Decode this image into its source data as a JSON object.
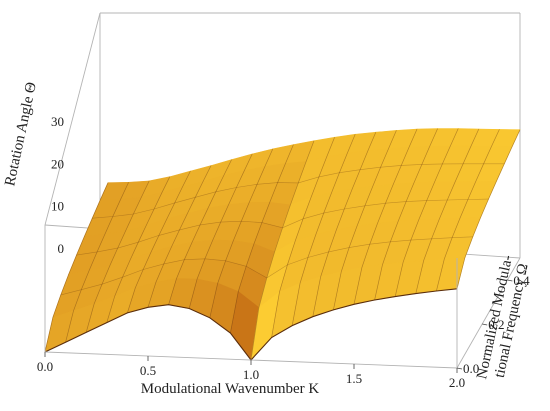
{
  "chart_data": {
    "type": "surface",
    "title": "",
    "xlabel": "Modulational Wavenumber K",
    "ylabel": "Normalized Modulational Frequency Ω",
    "ylabel_lines": [
      "Normalized Modula-",
      "tional Frequency Ω"
    ],
    "zlabel": "Rotation Angle Θ",
    "xlim": [
      0,
      2
    ],
    "ylim": [
      0,
      0.5
    ],
    "zlim": [
      0,
      30
    ],
    "x_ticks": [
      "0.0",
      "0.5",
      "1.0",
      "1.5",
      "2.0"
    ],
    "y_ticks": [
      "0.0",
      "0.2",
      "0.4"
    ],
    "z_ticks": [
      "0",
      "10",
      "20",
      "30"
    ],
    "x": [
      0,
      0.1,
      0.2,
      0.3,
      0.4,
      0.5,
      0.6,
      0.7,
      0.8,
      0.9,
      1.0,
      1.1,
      1.2,
      1.3,
      1.4,
      1.5,
      1.6,
      1.7,
      1.8,
      1.9,
      2.0
    ],
    "theta_at_omega_min": [
      0,
      2.5,
      5.0,
      7.5,
      10.0,
      11.5,
      12.3,
      11.6,
      9.6,
      6.2,
      0,
      5.5,
      8.5,
      10.8,
      12.6,
      14.1,
      15.3,
      16.3,
      17.2,
      18.0,
      18.7
    ],
    "theta_at_omega_max": [
      14,
      14.3,
      14.8,
      16.0,
      17.5,
      19.0,
      20.6,
      22.1,
      23.5,
      24.7,
      25.8,
      26.8,
      27.7,
      28.4,
      29.0,
      29.5,
      29.8,
      30.0,
      30.1,
      30.2,
      30.3
    ],
    "omega_range": [
      0,
      0.5
    ],
    "colormap": [
      "#b94f0c",
      "#e0801c",
      "#f5a524",
      "#ffd43a"
    ],
    "grid": false,
    "box": true
  }
}
